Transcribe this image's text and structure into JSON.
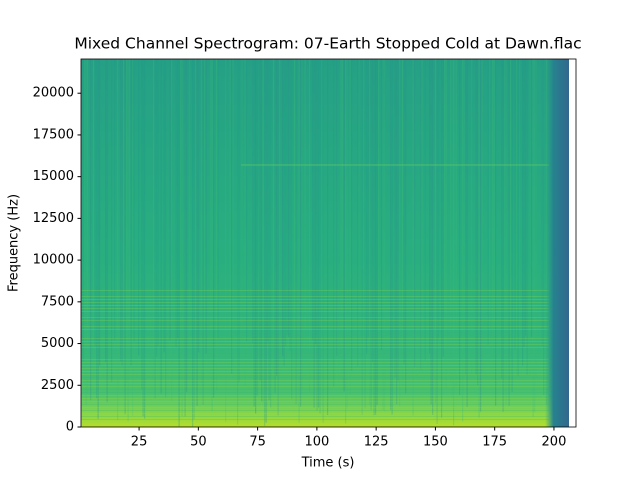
{
  "chart_data": {
    "type": "spectrogram",
    "title": "Mixed Channel Spectrogram: 07-Earth Stopped Cold at Dawn.flac",
    "x_label": "Time (s)",
    "y_label": "Frequency (Hz)",
    "xlim": [
      0.5,
      209.3
    ],
    "xticks": [
      25,
      50,
      75,
      100,
      125,
      150,
      175,
      200
    ],
    "ylim": [
      0,
      22050
    ],
    "yticks": [
      0,
      2500,
      5000,
      7500,
      10000,
      12500,
      15000,
      17500,
      20000
    ],
    "colormap": "viridis",
    "grid": false
  }
}
